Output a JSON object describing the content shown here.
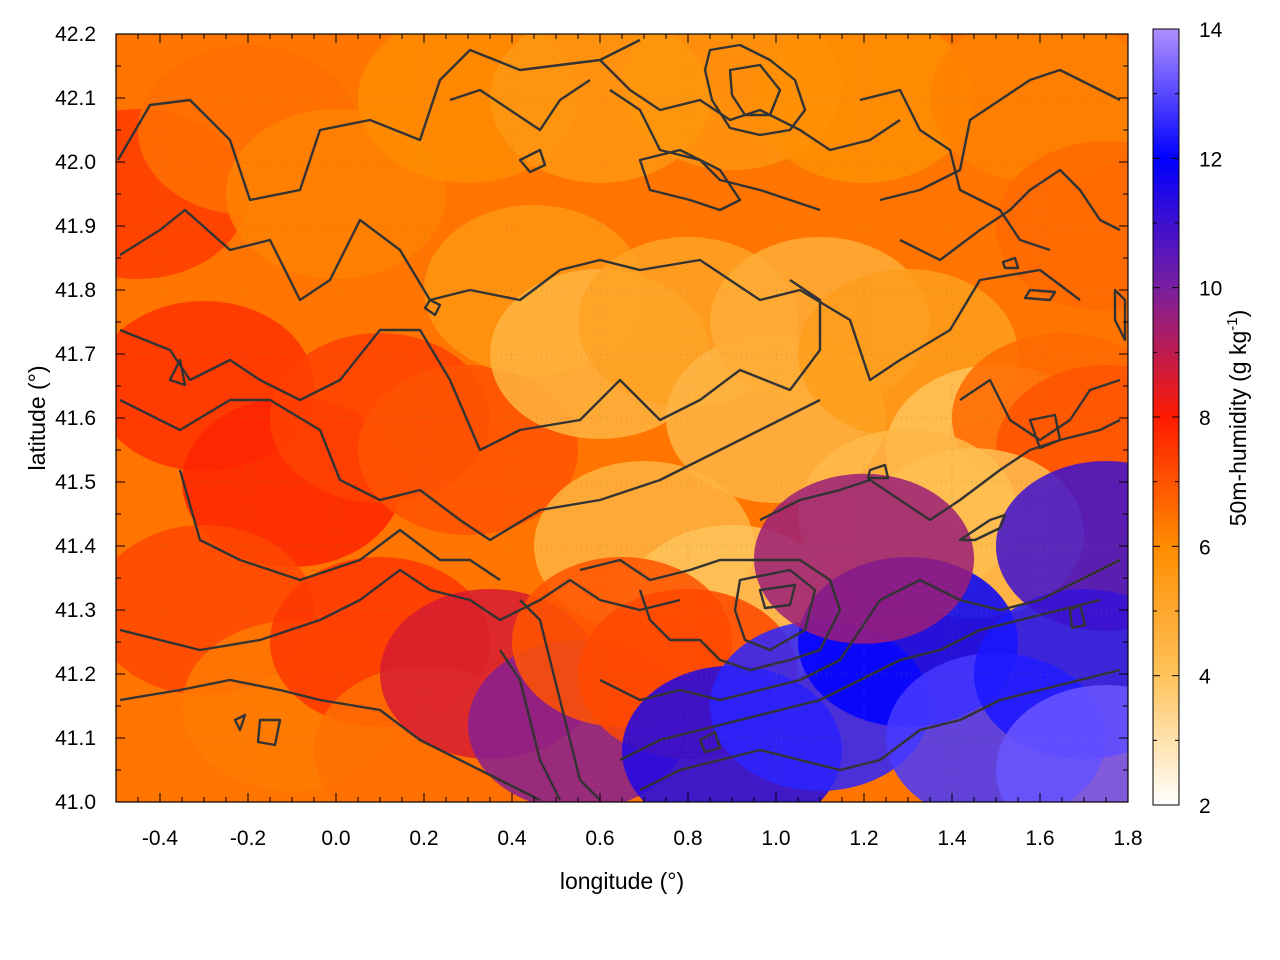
{
  "chart_data": {
    "type": "heatmap",
    "x": {
      "label": "longitude (°)",
      "range": [
        -0.5,
        1.8
      ],
      "ticks": [
        -0.4,
        -0.2,
        0.0,
        0.2,
        0.4,
        0.6,
        0.8,
        1.0,
        1.2,
        1.4,
        1.6,
        1.8
      ],
      "tick_labels": [
        "-0.4",
        "-0.2",
        "0.0",
        "0.2",
        "0.4",
        "0.6",
        "0.8",
        "1.0",
        "1.2",
        "1.4",
        "1.6",
        "1.8"
      ]
    },
    "y": {
      "label": "latitude (°)",
      "range": [
        41.0,
        42.2
      ],
      "ticks": [
        41.0,
        41.1,
        41.2,
        41.3,
        41.4,
        41.5,
        41.6,
        41.7,
        41.8,
        41.9,
        42.0,
        42.1,
        42.2
      ],
      "tick_labels": [
        "41.0",
        "41.1",
        "41.2",
        "41.3",
        "41.4",
        "41.5",
        "41.6",
        "41.7",
        "41.8",
        "41.9",
        "42.0",
        "42.1",
        "42.2"
      ]
    },
    "colorbar": {
      "label": "50m-humidity (g kg",
      "label_sup": "-1",
      "label_end": ")",
      "range": [
        2,
        14
      ],
      "ticks": [
        2,
        4,
        6,
        8,
        10,
        12,
        14
      ],
      "tick_labels": [
        "2",
        "4",
        "6",
        "8",
        "10",
        "12",
        "14"
      ],
      "stops": [
        {
          "value": 2,
          "color": "#ffffff"
        },
        {
          "value": 4,
          "color": "#ffc35a"
        },
        {
          "value": 6,
          "color": "#ff8c00"
        },
        {
          "value": 8,
          "color": "#ff1a00"
        },
        {
          "value": 10,
          "color": "#7a1fa0"
        },
        {
          "value": 12,
          "color": "#0000ff"
        },
        {
          "value": 14,
          "color": "#b090ff"
        }
      ]
    },
    "grid": "dotted",
    "regions": [
      {
        "lon": -0.45,
        "lat": 41.95,
        "humidity": 7.4
      },
      {
        "lon": -0.2,
        "lat": 42.05,
        "humidity": 6.5
      },
      {
        "lon": 0.0,
        "lat": 41.95,
        "humidity": 6.2
      },
      {
        "lon": 0.3,
        "lat": 42.1,
        "humidity": 6.0
      },
      {
        "lon": 0.6,
        "lat": 42.1,
        "humidity": 5.6
      },
      {
        "lon": 0.9,
        "lat": 42.12,
        "humidity": 5.7
      },
      {
        "lon": 1.2,
        "lat": 42.1,
        "humidity": 5.9
      },
      {
        "lon": 1.6,
        "lat": 42.1,
        "humidity": 6.2
      },
      {
        "lon": 1.75,
        "lat": 41.9,
        "humidity": 6.6
      },
      {
        "lon": -0.3,
        "lat": 41.65,
        "humidity": 7.6
      },
      {
        "lon": -0.1,
        "lat": 41.5,
        "humidity": 7.8
      },
      {
        "lon": 0.1,
        "lat": 41.6,
        "humidity": 7.3
      },
      {
        "lon": 0.3,
        "lat": 41.55,
        "humidity": 7.0
      },
      {
        "lon": 0.45,
        "lat": 41.8,
        "humidity": 5.6
      },
      {
        "lon": 0.6,
        "lat": 41.7,
        "humidity": 4.6
      },
      {
        "lon": 0.8,
        "lat": 41.75,
        "humidity": 5.2
      },
      {
        "lon": 1.0,
        "lat": 41.6,
        "humidity": 4.5
      },
      {
        "lon": 1.1,
        "lat": 41.75,
        "humidity": 4.8
      },
      {
        "lon": 1.3,
        "lat": 41.7,
        "humidity": 5.4
      },
      {
        "lon": 1.5,
        "lat": 41.55,
        "humidity": 4.0
      },
      {
        "lon": 1.65,
        "lat": 41.6,
        "humidity": 6.6
      },
      {
        "lon": 1.75,
        "lat": 41.55,
        "humidity": 7.0
      },
      {
        "lon": 0.7,
        "lat": 41.4,
        "humidity": 4.6
      },
      {
        "lon": 0.9,
        "lat": 41.3,
        "humidity": 4.0
      },
      {
        "lon": 1.3,
        "lat": 41.45,
        "humidity": 4.4
      },
      {
        "lon": 1.45,
        "lat": 41.42,
        "humidity": 4.2
      },
      {
        "lon": -0.3,
        "lat": 41.3,
        "humidity": 7.2
      },
      {
        "lon": -0.1,
        "lat": 41.15,
        "humidity": 6.3
      },
      {
        "lon": 0.1,
        "lat": 41.25,
        "humidity": 7.5
      },
      {
        "lon": 0.2,
        "lat": 41.08,
        "humidity": 6.5
      },
      {
        "lon": 0.35,
        "lat": 41.2,
        "humidity": 8.6
      },
      {
        "lon": 0.55,
        "lat": 41.12,
        "humidity": 9.8
      },
      {
        "lon": 0.65,
        "lat": 41.25,
        "humidity": 7.0
      },
      {
        "lon": 0.8,
        "lat": 41.2,
        "humidity": 7.2
      },
      {
        "lon": 0.9,
        "lat": 41.08,
        "humidity": 11.5
      },
      {
        "lon": 1.1,
        "lat": 41.15,
        "humidity": 12.5
      },
      {
        "lon": 1.3,
        "lat": 41.25,
        "humidity": 12.0
      },
      {
        "lon": 1.5,
        "lat": 41.1,
        "humidity": 12.8
      },
      {
        "lon": 1.7,
        "lat": 41.2,
        "humidity": 12.3
      },
      {
        "lon": 1.75,
        "lat": 41.05,
        "humidity": 13.2
      },
      {
        "lon": 1.75,
        "lat": 41.4,
        "humidity": 11.0
      },
      {
        "lon": 1.2,
        "lat": 41.38,
        "humidity": 9.5
      }
    ]
  }
}
